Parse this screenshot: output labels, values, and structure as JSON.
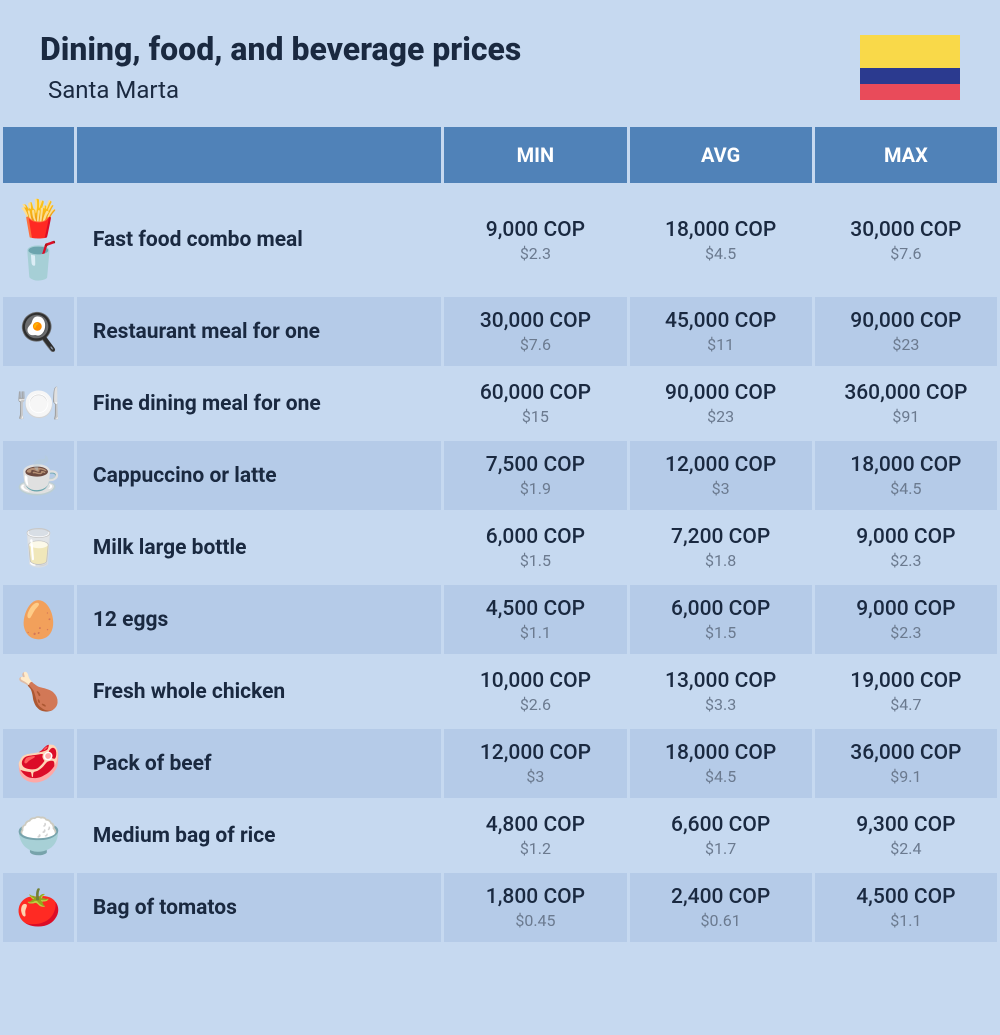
{
  "header": {
    "title": "Dining, food, and beverage prices",
    "subtitle": "Santa Marta"
  },
  "flag": {
    "stripes": [
      {
        "color": "#f9d949",
        "height": 50
      },
      {
        "color": "#2b3a8f",
        "height": 25
      },
      {
        "color": "#e94b5a",
        "height": 25
      }
    ]
  },
  "columns": [
    "MIN",
    "AVG",
    "MAX"
  ],
  "colors": {
    "page_bg": "#c6d9f0",
    "header_bg": "#5082b8",
    "header_text": "#ffffff",
    "row_even": "#c6d9f0",
    "row_odd": "#b5cbe8",
    "text_primary": "#1a2940",
    "text_secondary": "#6b7a8f"
  },
  "rows": [
    {
      "icon": "🍟🥤",
      "label": "Fast food combo meal",
      "min": {
        "cop": "9,000 COP",
        "usd": "$2.3"
      },
      "avg": {
        "cop": "18,000 COP",
        "usd": "$4.5"
      },
      "max": {
        "cop": "30,000 COP",
        "usd": "$7.6"
      }
    },
    {
      "icon": "🍳",
      "label": "Restaurant meal for one",
      "min": {
        "cop": "30,000 COP",
        "usd": "$7.6"
      },
      "avg": {
        "cop": "45,000 COP",
        "usd": "$11"
      },
      "max": {
        "cop": "90,000 COP",
        "usd": "$23"
      }
    },
    {
      "icon": "🍽️",
      "label": "Fine dining meal for one",
      "min": {
        "cop": "60,000 COP",
        "usd": "$15"
      },
      "avg": {
        "cop": "90,000 COP",
        "usd": "$23"
      },
      "max": {
        "cop": "360,000 COP",
        "usd": "$91"
      }
    },
    {
      "icon": "☕",
      "label": "Cappuccino or latte",
      "min": {
        "cop": "7,500 COP",
        "usd": "$1.9"
      },
      "avg": {
        "cop": "12,000 COP",
        "usd": "$3"
      },
      "max": {
        "cop": "18,000 COP",
        "usd": "$4.5"
      }
    },
    {
      "icon": "🥛",
      "label": "Milk large bottle",
      "min": {
        "cop": "6,000 COP",
        "usd": "$1.5"
      },
      "avg": {
        "cop": "7,200 COP",
        "usd": "$1.8"
      },
      "max": {
        "cop": "9,000 COP",
        "usd": "$2.3"
      }
    },
    {
      "icon": "🥚",
      "label": "12 eggs",
      "min": {
        "cop": "4,500 COP",
        "usd": "$1.1"
      },
      "avg": {
        "cop": "6,000 COP",
        "usd": "$1.5"
      },
      "max": {
        "cop": "9,000 COP",
        "usd": "$2.3"
      }
    },
    {
      "icon": "🍗",
      "label": "Fresh whole chicken",
      "min": {
        "cop": "10,000 COP",
        "usd": "$2.6"
      },
      "avg": {
        "cop": "13,000 COP",
        "usd": "$3.3"
      },
      "max": {
        "cop": "19,000 COP",
        "usd": "$4.7"
      }
    },
    {
      "icon": "🥩",
      "label": "Pack of beef",
      "min": {
        "cop": "12,000 COP",
        "usd": "$3"
      },
      "avg": {
        "cop": "18,000 COP",
        "usd": "$4.5"
      },
      "max": {
        "cop": "36,000 COP",
        "usd": "$9.1"
      }
    },
    {
      "icon": "🍚",
      "label": "Medium bag of rice",
      "min": {
        "cop": "4,800 COP",
        "usd": "$1.2"
      },
      "avg": {
        "cop": "6,600 COP",
        "usd": "$1.7"
      },
      "max": {
        "cop": "9,300 COP",
        "usd": "$2.4"
      }
    },
    {
      "icon": "🍅",
      "label": "Bag of tomatos",
      "min": {
        "cop": "1,800 COP",
        "usd": "$0.45"
      },
      "avg": {
        "cop": "2,400 COP",
        "usd": "$0.61"
      },
      "max": {
        "cop": "4,500 COP",
        "usd": "$1.1"
      }
    }
  ]
}
